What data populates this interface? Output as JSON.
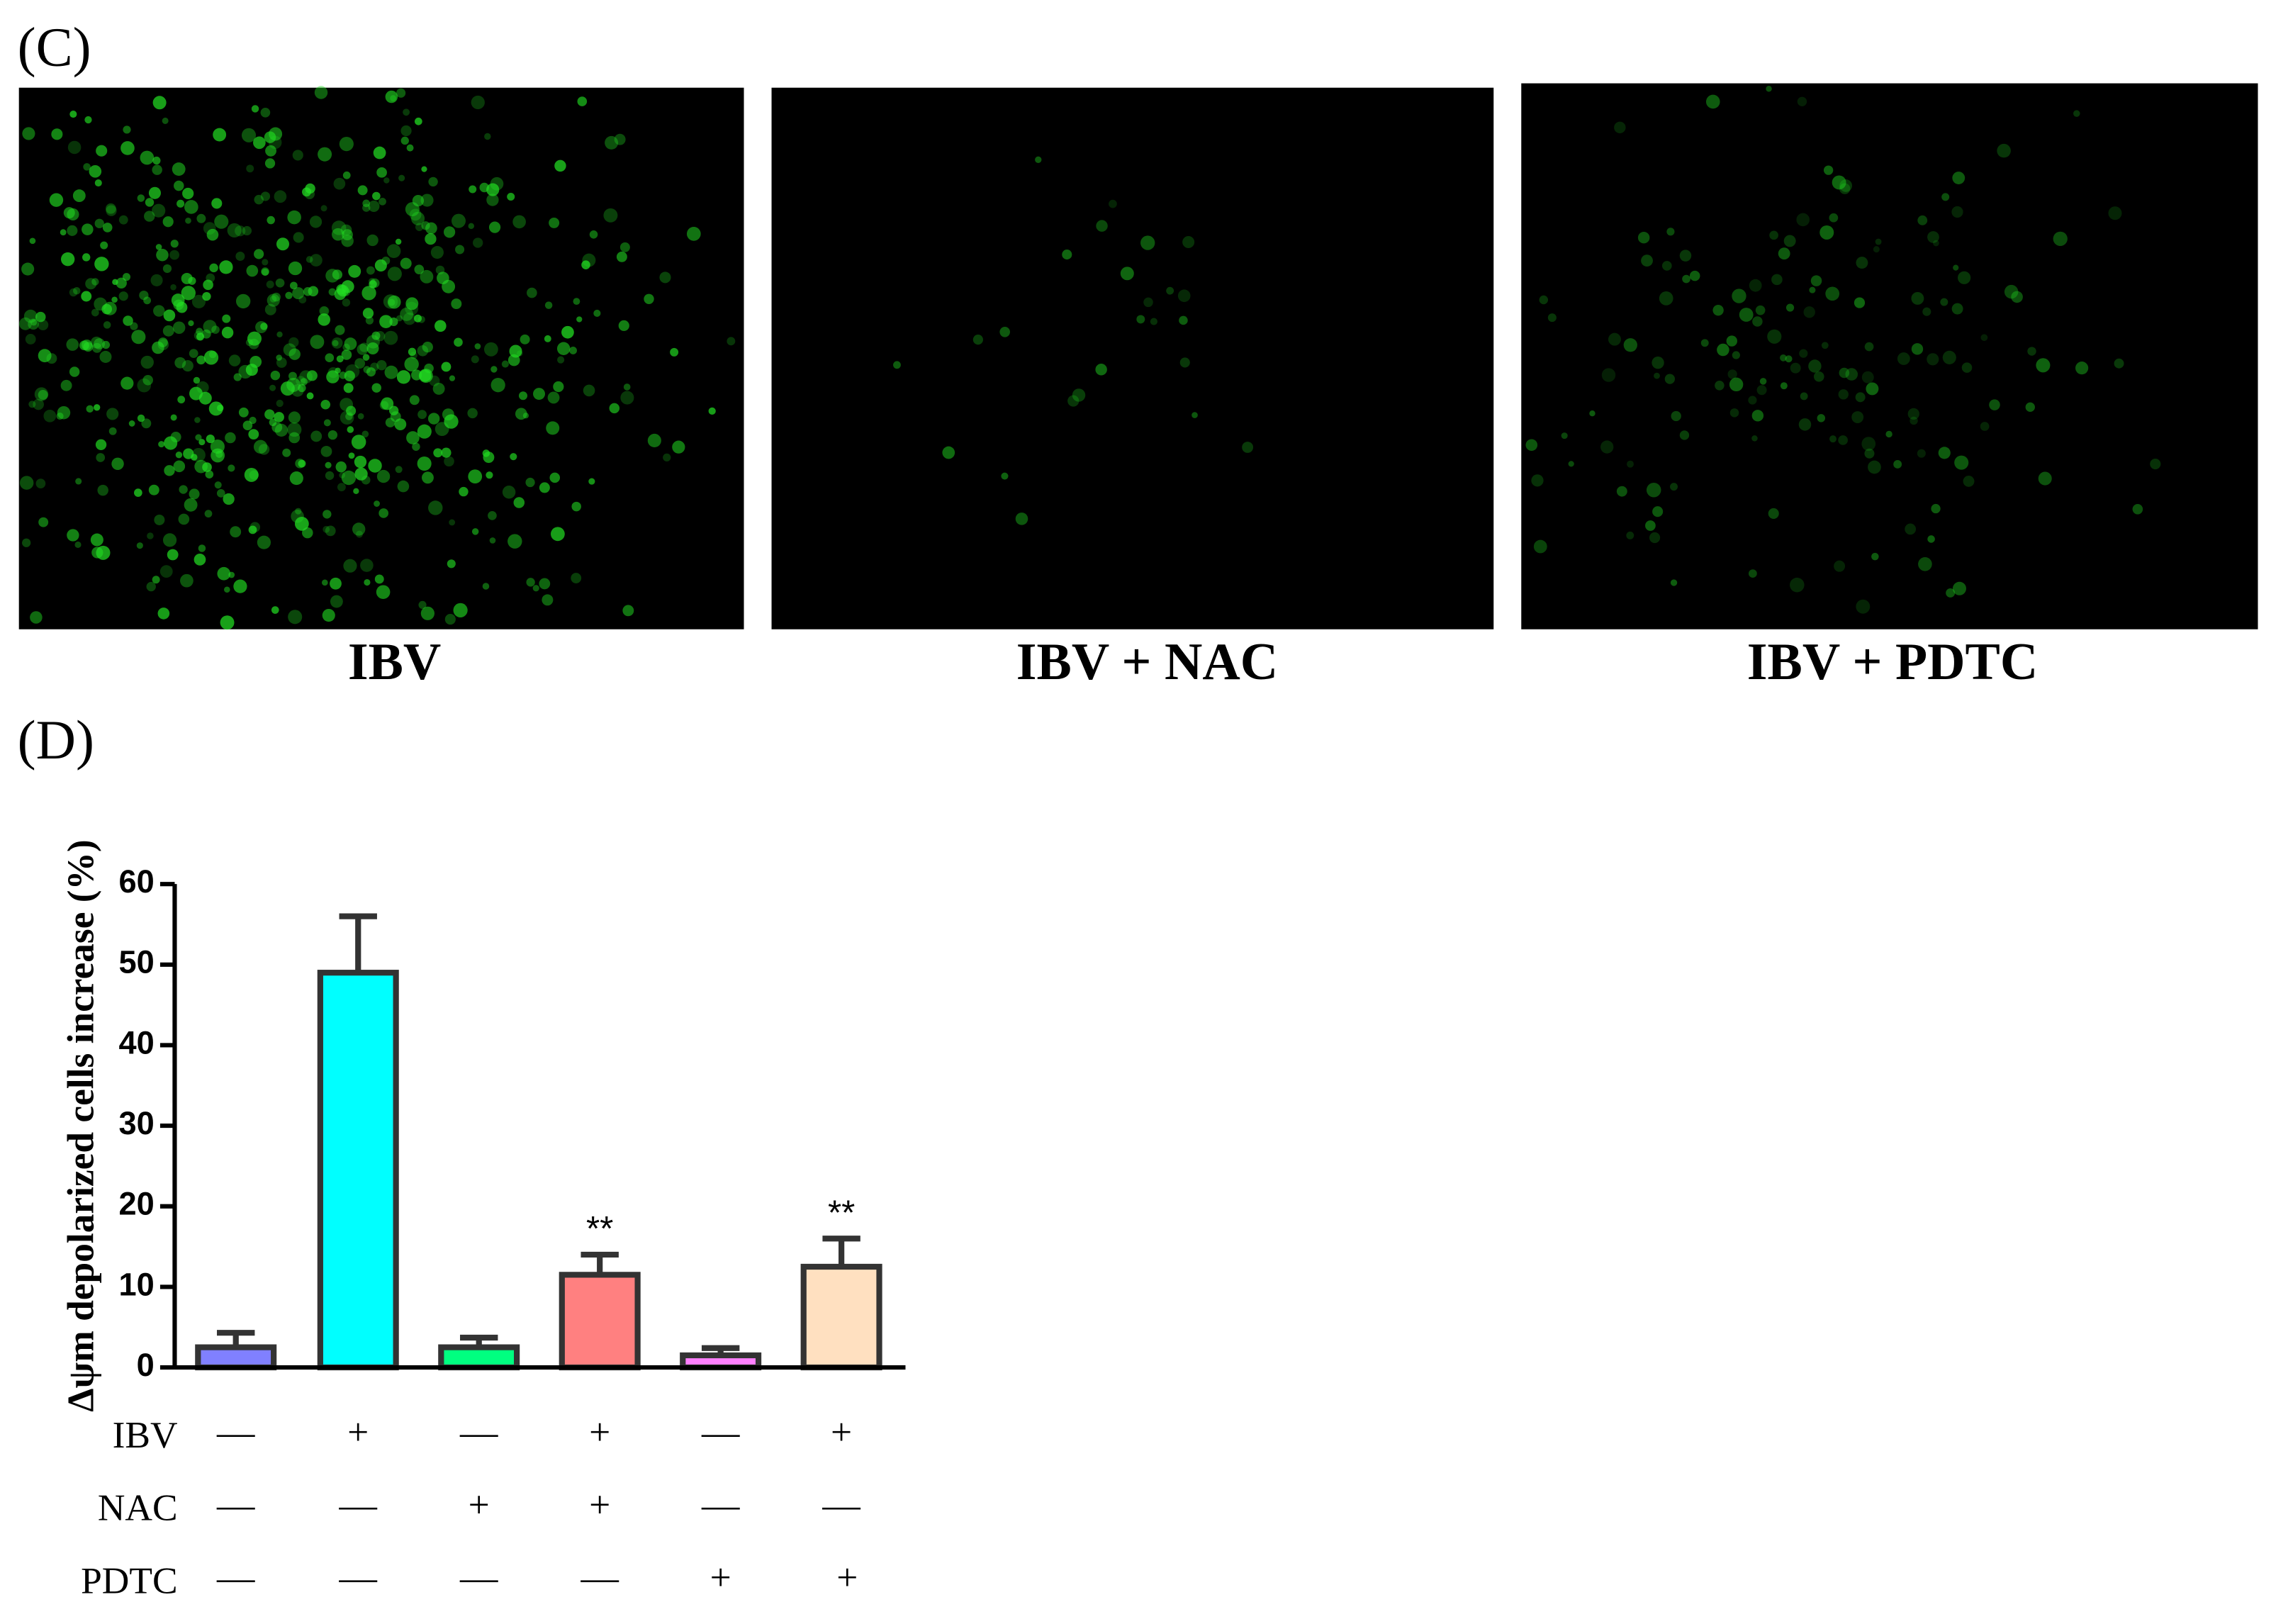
{
  "panels": [
    {
      "label": "(C)",
      "captions": [
        "IBV",
        "IBV + NAC",
        "IBV + PDTC"
      ]
    },
    {
      "label": "(D)"
    }
  ],
  "chart_data": {
    "type": "bar",
    "ylabel": "Δψm depolarized cells increase (%)",
    "ylim": [
      0,
      60
    ],
    "yticks": [
      0,
      10,
      20,
      30,
      40,
      50,
      60
    ],
    "grid": false,
    "values": [
      2.5,
      49,
      2.5,
      11.5,
      1.5,
      12.5
    ],
    "errors": [
      1.8,
      7,
      1.2,
      2.5,
      0.9,
      3.5
    ],
    "colors": [
      "#8080ff",
      "#00ffff",
      "#00ff80",
      "#ff8080",
      "#ff80ff",
      "#ffe0c0"
    ],
    "significance": [
      null,
      null,
      null,
      "**",
      null,
      "**"
    ],
    "treatments": [
      {
        "name": "IBV",
        "signs": [
          "—",
          "+",
          "—",
          "+",
          "—",
          "+"
        ]
      },
      {
        "name": "NAC",
        "signs": [
          "—",
          "—",
          "+",
          "+",
          "—",
          "—"
        ]
      },
      {
        "name": "PDTC",
        "signs": [
          "—",
          "—",
          "—",
          "—",
          "+",
          "+"
        ]
      }
    ]
  }
}
